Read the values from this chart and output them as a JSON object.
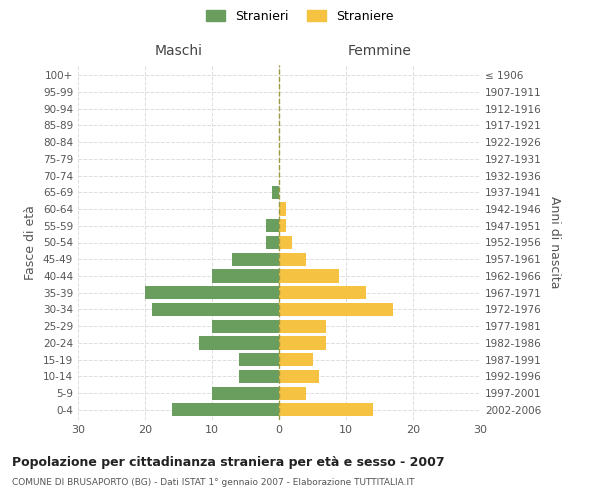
{
  "age_groups": [
    "100+",
    "95-99",
    "90-94",
    "85-89",
    "80-84",
    "75-79",
    "70-74",
    "65-69",
    "60-64",
    "55-59",
    "50-54",
    "45-49",
    "40-44",
    "35-39",
    "30-34",
    "25-29",
    "20-24",
    "15-19",
    "10-14",
    "5-9",
    "0-4"
  ],
  "birth_years": [
    "≤ 1906",
    "1907-1911",
    "1912-1916",
    "1917-1921",
    "1922-1926",
    "1927-1931",
    "1932-1936",
    "1937-1941",
    "1942-1946",
    "1947-1951",
    "1952-1956",
    "1957-1961",
    "1962-1966",
    "1967-1971",
    "1972-1976",
    "1977-1981",
    "1982-1986",
    "1987-1991",
    "1992-1996",
    "1997-2001",
    "2002-2006"
  ],
  "maschi": [
    0,
    0,
    0,
    0,
    0,
    0,
    0,
    1,
    0,
    2,
    2,
    7,
    10,
    20,
    19,
    10,
    12,
    6,
    6,
    10,
    16
  ],
  "femmine": [
    0,
    0,
    0,
    0,
    0,
    0,
    0,
    0,
    1,
    1,
    2,
    4,
    9,
    13,
    17,
    7,
    7,
    5,
    6,
    4,
    14
  ],
  "color_maschi": "#6a9e5e",
  "color_femmine": "#f5c242",
  "title": "Popolazione per cittadinanza straniera per età e sesso - 2007",
  "subtitle": "COMUNE DI BRUSAPORTO (BG) - Dati ISTAT 1° gennaio 2007 - Elaborazione TUTTITALIA.IT",
  "xlabel_left": "Maschi",
  "xlabel_right": "Femmine",
  "ylabel_left": "Fasce di età",
  "ylabel_right": "Anni di nascita",
  "legend_stranieri": "Stranieri",
  "legend_straniere": "Straniere",
  "xlim": 30,
  "background_color": "#ffffff",
  "grid_color": "#dddddd"
}
